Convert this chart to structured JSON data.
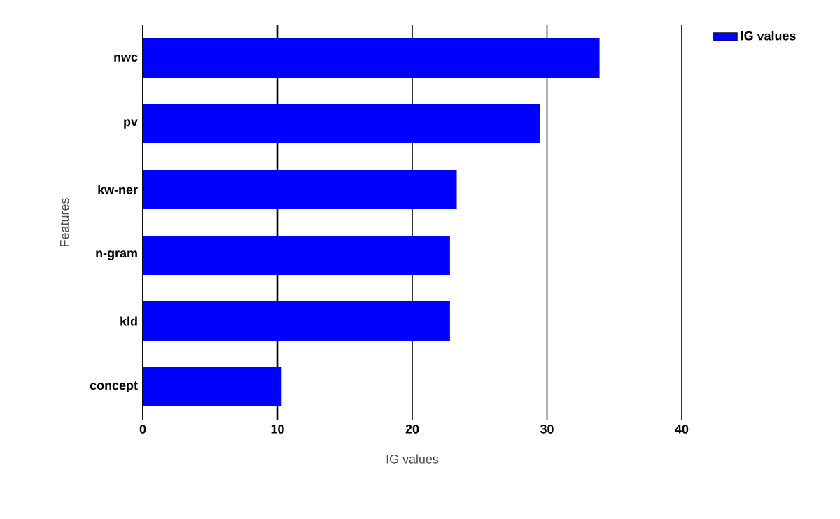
{
  "chart_data": {
    "type": "bar",
    "orientation": "horizontal",
    "categories": [
      "nwc",
      "pv",
      "kw-ner",
      "n-gram",
      "kld",
      "concept"
    ],
    "series": [
      {
        "name": "IG values",
        "color": "#0000ff",
        "values": [
          33.9,
          29.5,
          23.3,
          22.8,
          22.8,
          10.3
        ]
      }
    ],
    "xlabel": "IG values",
    "ylabel": "Features",
    "xlim": [
      0,
      40
    ],
    "xticks": [
      0,
      10,
      20,
      30,
      40
    ],
    "grid": "x",
    "legend": "top right"
  }
}
